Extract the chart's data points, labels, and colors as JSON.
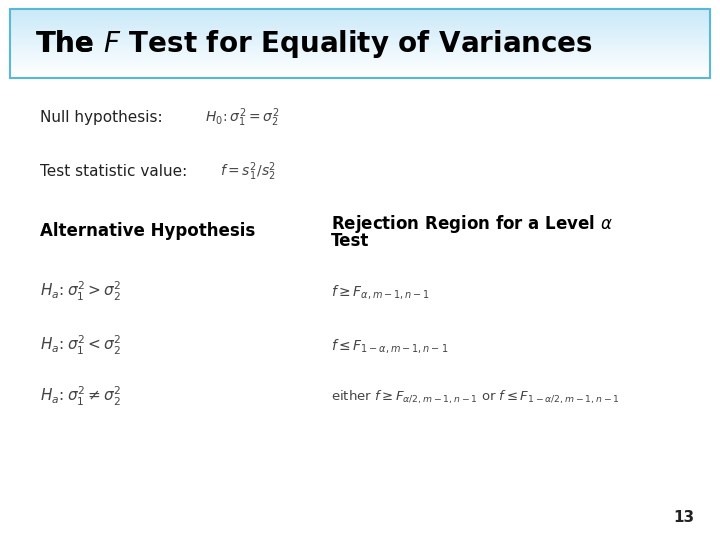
{
  "title_plain": "The ",
  "title_italic": "F",
  "title_rest": " Test for Equality of Variances",
  "title_color": "#000000",
  "title_bg_top": "#C8E8F8",
  "title_bg_color": "#C8E8F8",
  "title_border_color": "#5BB8D4",
  "bg_color": "#FFFFFF",
  "null_label": "Null hypothesis:",
  "null_formula": "$H_0\\!: \\sigma_1^2 = \\sigma_2^2$",
  "stat_label": "Test statistic value:",
  "stat_formula": "$f = s_1^2/s_2^2$",
  "alt_header": "Alternative Hypothesis",
  "rej_header_1": "Rejection Region for a Level $\\alpha$",
  "rej_header_2": "Test",
  "alt1": "$H_a\\!: \\sigma_1^2 > \\sigma_2^2$",
  "rej1": "$f \\geq F_{\\alpha,m-1,n-1}$",
  "alt2": "$H_a\\!: \\sigma_1^2 < \\sigma_2^2$",
  "rej2": "$f \\leq F_{1-\\alpha,m-1,n-1}$",
  "alt3": "$H_a\\!: \\sigma_1^2 \\neq \\sigma_2^2$",
  "rej3_part1": "either $f \\geq F_{\\alpha/2,m-1,n-1}$",
  "rej3_part2": " or $f \\leq F_{1-\\alpha/2,m-1,n-1}$",
  "page_num": "13",
  "text_color": "#222222",
  "formula_color": "#444444",
  "label_color": "#222222",
  "header_color": "#000000"
}
